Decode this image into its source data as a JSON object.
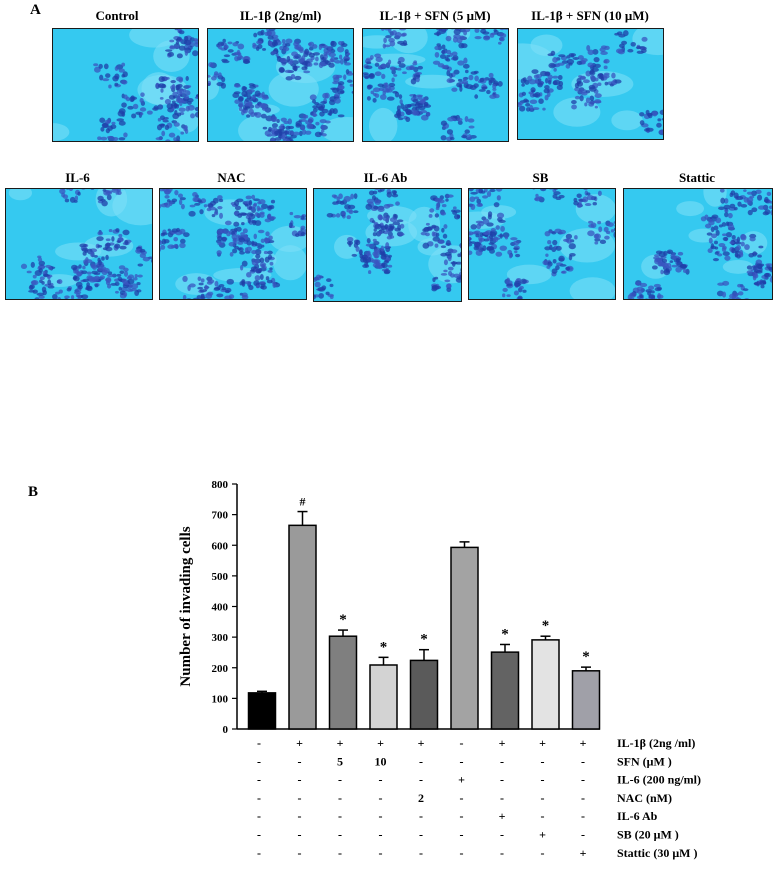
{
  "panels": {
    "a": "A",
    "b": "B"
  },
  "micrographs": {
    "row1": [
      "Control",
      "IL-1β (2ng/ml)",
      "IL-1β + SFN (5 μM)",
      "IL-1β + SFN (10 μM)"
    ],
    "row2": [
      "IL-6",
      "NAC",
      "IL-6 Ab",
      "SB",
      "Stattic"
    ]
  },
  "chart_data": {
    "type": "bar",
    "ylabel": "Number of invading cells",
    "ylim": [
      0,
      800
    ],
    "yticks": [
      0,
      100,
      200,
      300,
      400,
      500,
      600,
      700,
      800
    ],
    "values": [
      118,
      665,
      303,
      209,
      224,
      593,
      251,
      291,
      190
    ],
    "errors": [
      5,
      45,
      20,
      25,
      35,
      18,
      25,
      12,
      12
    ],
    "colors": [
      "#000000",
      "#9a9a9a",
      "#7f7f7f",
      "#d3d3d3",
      "#5a5a5a",
      "#a3a3a3",
      "#636363",
      "#e3e3e3",
      "#a0a0a8"
    ],
    "annotations": [
      "",
      "#",
      "*",
      "*",
      "*",
      "",
      "*",
      "*",
      "*"
    ],
    "conditions": [
      {
        "label": "IL-1β (2ng /ml)",
        "cells": [
          "-",
          "+",
          "+",
          "+",
          "+",
          "-",
          "+",
          "+",
          "+"
        ]
      },
      {
        "label": "SFN (μM )",
        "cells": [
          "-",
          "-",
          "5",
          "10",
          "-",
          "-",
          "-",
          "-",
          "-"
        ]
      },
      {
        "label": "IL-6 (200 ng/ml)",
        "cells": [
          "-",
          "-",
          "-",
          "-",
          "-",
          "+",
          "-",
          "-",
          "-"
        ]
      },
      {
        "label": "NAC (nM)",
        "cells": [
          "-",
          "-",
          "-",
          "-",
          "2",
          "-",
          "-",
          "-",
          "-"
        ]
      },
      {
        "label": "IL-6 Ab",
        "cells": [
          "-",
          "-",
          "-",
          "-",
          "-",
          "-",
          "+",
          "-",
          "-"
        ]
      },
      {
        "label": "SB (20 μM )",
        "cells": [
          "-",
          "-",
          "-",
          "-",
          "-",
          "-",
          "-",
          "+",
          "-"
        ]
      },
      {
        "label": "Stattic (30 μM )",
        "cells": [
          "-",
          "-",
          "-",
          "-",
          "-",
          "-",
          "-",
          "-",
          "+"
        ]
      }
    ]
  }
}
